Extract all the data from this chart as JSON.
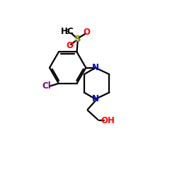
{
  "background_color": "#ffffff",
  "atom_colors": {
    "C": "#000000",
    "N": "#0000cd",
    "O": "#ff0000",
    "S": "#808000",
    "Cl": "#800080",
    "H": "#000000"
  },
  "figsize": [
    2.5,
    2.5
  ],
  "dpi": 100,
  "lw": 1.6
}
